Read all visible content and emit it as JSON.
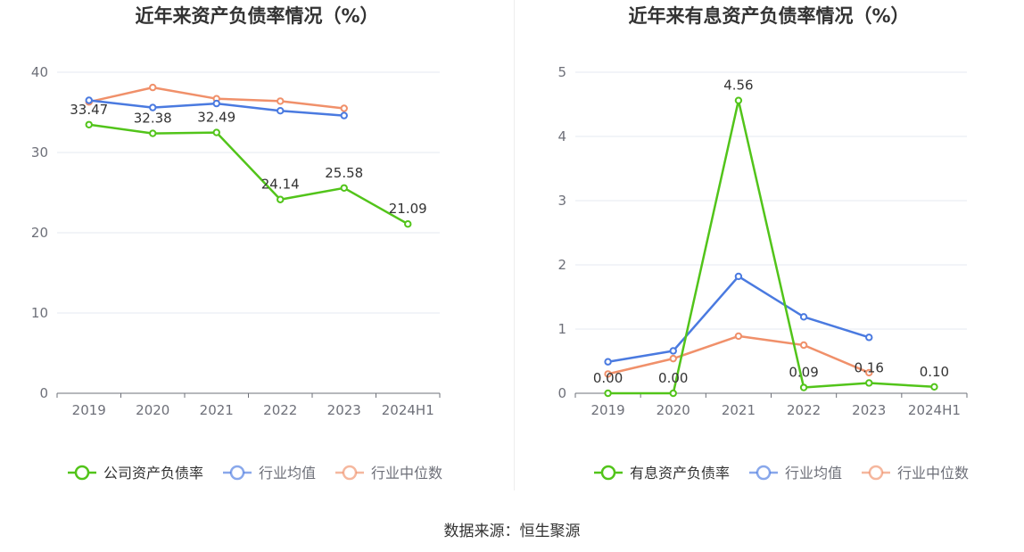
{
  "footer": {
    "source": "数据来源：恒生聚源"
  },
  "colors": {
    "company": "#52c41a",
    "avg": "#4a7ae0",
    "median": "#f0906a",
    "grid": "#e6e9f2",
    "axis": "#6e7079",
    "tick_text": "#6e7079",
    "label_text": "#333333"
  },
  "chart_data": [
    {
      "type": "line",
      "title": "近年来资产负债率情况（%）",
      "categories": [
        "2019",
        "2020",
        "2021",
        "2022",
        "2023",
        "2024H1"
      ],
      "ylim": [
        0,
        40
      ],
      "yticks": [
        "0",
        "10",
        "20",
        "30",
        "40"
      ],
      "grid": true,
      "legend_position": "bottom",
      "series": [
        {
          "name": "公司资产负债率",
          "color": "#52c41a",
          "values": [
            33.47,
            32.38,
            32.49,
            24.14,
            25.58,
            21.09
          ],
          "labels": [
            "33.47",
            "32.38",
            "32.49",
            "24.14",
            "25.58",
            "21.09"
          ]
        },
        {
          "name": "行业均值",
          "color": "#4a7ae0",
          "values": [
            36.5,
            35.6,
            36.1,
            35.2,
            34.6,
            null
          ],
          "labels": []
        },
        {
          "name": "行业中位数",
          "color": "#f0906a",
          "values": [
            36.3,
            38.1,
            36.7,
            36.4,
            35.5,
            null
          ],
          "labels": []
        }
      ]
    },
    {
      "type": "line",
      "title": "近年来有息资产负债率情况（%）",
      "categories": [
        "2019",
        "2020",
        "2021",
        "2022",
        "2023",
        "2024H1"
      ],
      "ylim": [
        0,
        5
      ],
      "yticks": [
        "0",
        "1",
        "2",
        "3",
        "4",
        "5"
      ],
      "grid": true,
      "legend_position": "bottom",
      "series": [
        {
          "name": "有息资产负债率",
          "color": "#52c41a",
          "values": [
            0.0,
            0.0,
            4.56,
            0.09,
            0.16,
            0.1
          ],
          "labels": [
            "0.00",
            "0.00",
            "4.56",
            "0.09",
            "0.16",
            "0.10"
          ]
        },
        {
          "name": "行业均值",
          "color": "#4a7ae0",
          "values": [
            0.49,
            0.66,
            1.82,
            1.19,
            0.87,
            null
          ],
          "labels": []
        },
        {
          "name": "行业中位数",
          "color": "#f0906a",
          "values": [
            0.3,
            0.54,
            0.89,
            0.75,
            0.32,
            null
          ],
          "labels": []
        }
      ]
    }
  ]
}
